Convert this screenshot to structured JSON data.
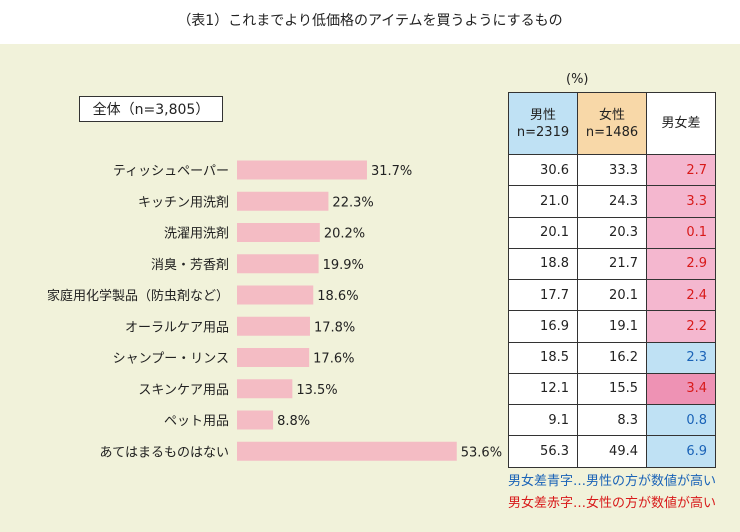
{
  "title": "（表1）これまでより低価格のアイテムを買うようにするもの",
  "total_label": "全体（n=3,805）",
  "unit": "(%)",
  "table_headers": {
    "male": "男性",
    "male_n": "n=2319",
    "female": "女性",
    "female_n": "n=1486",
    "diff": "男女差"
  },
  "legend": {
    "blue": "男女差青字…男性の方が数値が高い",
    "red": "男女差赤字…女性の方が数値が高い"
  },
  "colors": {
    "bar": "#f4bcc4",
    "diff_female_higher": "#f4b7cf",
    "diff_female_higher_strong": "#ee92b4",
    "diff_male_higher": "#bfe1f4",
    "text_blue": "#1a63b7",
    "text_red": "#d81a1a"
  },
  "chart_data": {
    "type": "bar",
    "orientation": "horizontal",
    "categories": [
      "ティッシュペーパー",
      "キッチン用洗剤",
      "洗濯用洗剤",
      "消臭・芳香剤",
      "家庭用化学製品（防虫剤など）",
      "オーラルケア用品",
      "シャンプー・リンス",
      "スキンケア用品",
      "ペット用品",
      "あてはまるものはない"
    ],
    "values": [
      31.7,
      22.3,
      20.2,
      19.9,
      18.6,
      17.8,
      17.6,
      13.5,
      8.8,
      53.6
    ],
    "value_labels": [
      "31.7%",
      "22.3%",
      "20.2%",
      "19.9%",
      "18.6%",
      "17.8%",
      "17.6%",
      "13.5%",
      "8.8%",
      "53.6%"
    ],
    "male": [
      "30.6",
      "21.0",
      "20.1",
      "18.8",
      "17.7",
      "16.9",
      "18.5",
      "12.1",
      "9.1",
      "56.3"
    ],
    "female": [
      "33.3",
      "24.3",
      "20.3",
      "21.7",
      "20.1",
      "19.1",
      "16.2",
      "15.5",
      "8.3",
      "49.4"
    ],
    "diff": [
      "2.7",
      "3.3",
      "0.1",
      "2.9",
      "2.4",
      "2.2",
      "2.3",
      "3.4",
      "0.8",
      "6.9"
    ],
    "diff_higher": [
      "female",
      "female",
      "female",
      "female",
      "female",
      "female",
      "male",
      "female",
      "male",
      "male"
    ]
  }
}
